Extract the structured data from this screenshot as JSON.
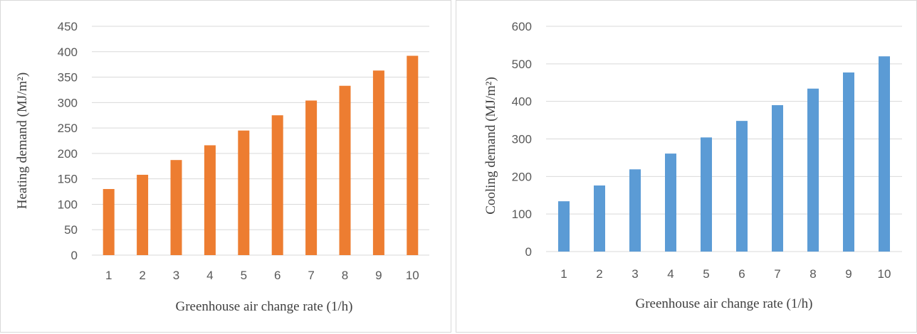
{
  "chart_data": [
    {
      "type": "bar",
      "categories": [
        "1",
        "2",
        "3",
        "4",
        "5",
        "6",
        "7",
        "8",
        "9",
        "10"
      ],
      "values": [
        130,
        158,
        187,
        216,
        245,
        275,
        304,
        333,
        363,
        392
      ],
      "title": "",
      "xlabel": "Greenhouse air change rate (1/h)",
      "ylabel": "Heating demand (MJ/m²)",
      "ylim": [
        0,
        450
      ],
      "yticks": [
        0,
        50,
        100,
        150,
        200,
        250,
        300,
        350,
        400,
        450
      ],
      "grid": true,
      "color": "#ED7D31"
    },
    {
      "type": "bar",
      "categories": [
        "1",
        "2",
        "3",
        "4",
        "5",
        "6",
        "7",
        "8",
        "9",
        "10"
      ],
      "values": [
        134,
        176,
        219,
        261,
        304,
        348,
        390,
        434,
        477,
        520
      ],
      "title": "",
      "xlabel": "Greenhouse air change rate (1/h)",
      "ylabel": "Cooling demand (MJ/m²)",
      "ylim": [
        0,
        600
      ],
      "yticks": [
        0,
        100,
        200,
        300,
        400,
        500,
        600
      ],
      "grid": true,
      "color": "#5B9BD5"
    }
  ]
}
